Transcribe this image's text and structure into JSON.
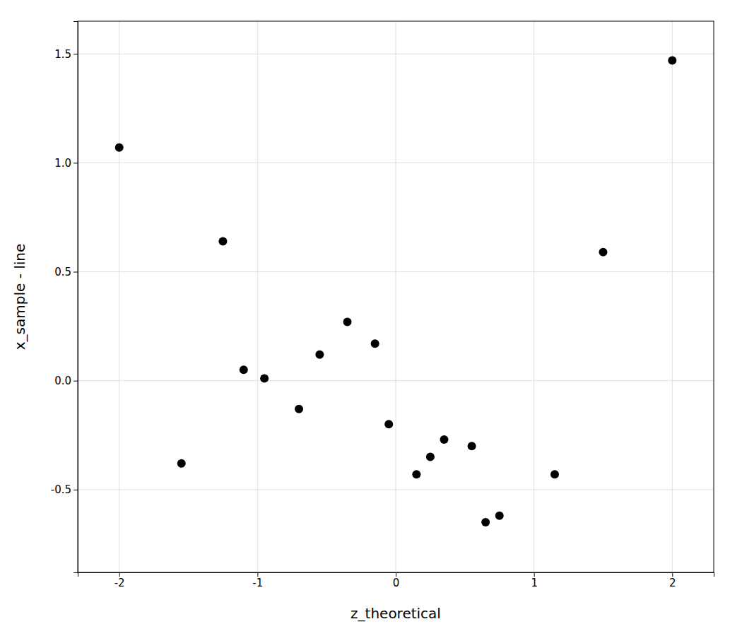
{
  "chart_data": {
    "type": "scatter",
    "x": [
      -2.0,
      -1.55,
      -1.25,
      -1.1,
      -0.95,
      -0.7,
      -0.55,
      -0.35,
      -0.15,
      -0.05,
      0.15,
      0.25,
      0.35,
      0.55,
      0.65,
      0.75,
      1.15,
      1.5,
      2.0
    ],
    "values": [
      1.07,
      -0.38,
      0.64,
      0.05,
      0.01,
      -0.13,
      0.12,
      0.27,
      0.17,
      -0.2,
      -0.43,
      -0.35,
      -0.27,
      -0.3,
      -0.65,
      -0.62,
      -0.43,
      0.59,
      1.47
    ],
    "color": "#000000",
    "xlabel": "z_theoretical",
    "ylabel": "x_sample - line",
    "xlim": [
      -2.3,
      2.3
    ],
    "ylim": [
      -0.88,
      1.65
    ],
    "xticks": [
      -2,
      -1,
      0,
      1,
      2
    ],
    "yticks": [
      -0.5,
      {
        "value": 0.0,
        "label": "0.0"
      },
      0.5,
      {
        "value": 1.0,
        "label": "1.0"
      },
      1.5
    ],
    "grid": true
  }
}
